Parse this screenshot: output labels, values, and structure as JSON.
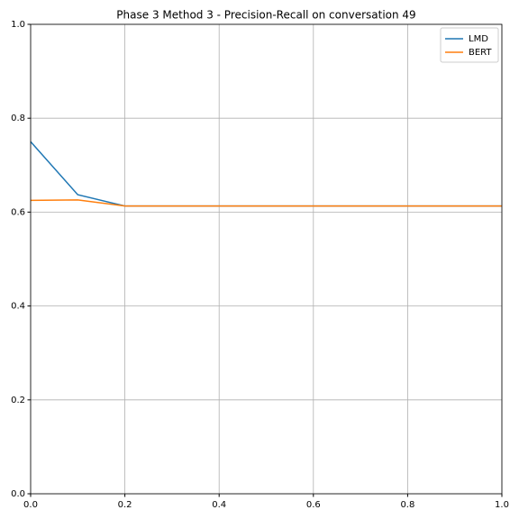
{
  "chart_data": {
    "type": "line",
    "title": "Phase 3 Method 3 - Precision-Recall on conversation 49",
    "x": [
      0,
      0.1,
      0.2,
      0.3,
      0.4,
      0.5,
      0.6,
      0.7,
      0.8,
      0.9,
      1.0
    ],
    "series": [
      {
        "name": "LMD",
        "color": "#1f77b4",
        "values": [
          0.75,
          0.637,
          0.613,
          0.613,
          0.613,
          0.613,
          0.613,
          0.613,
          0.613,
          0.613,
          0.613
        ]
      },
      {
        "name": "BERT",
        "color": "#ff7f0e",
        "values": [
          0.625,
          0.626,
          0.613,
          0.613,
          0.613,
          0.613,
          0.613,
          0.613,
          0.613,
          0.613,
          0.613
        ]
      }
    ],
    "xlim": [
      0,
      1
    ],
    "ylim": [
      0,
      1
    ],
    "xticks": [
      {
        "value": 0,
        "label": "0.0"
      },
      0.2,
      0.4,
      0.6,
      0.8,
      {
        "value": 1,
        "label": "1.0"
      }
    ],
    "yticks": [
      {
        "value": 0,
        "label": "0.0"
      },
      0.2,
      0.4,
      0.6,
      0.8,
      {
        "value": 1,
        "label": "1.0"
      }
    ],
    "grid": true,
    "legend": "upper-right"
  }
}
